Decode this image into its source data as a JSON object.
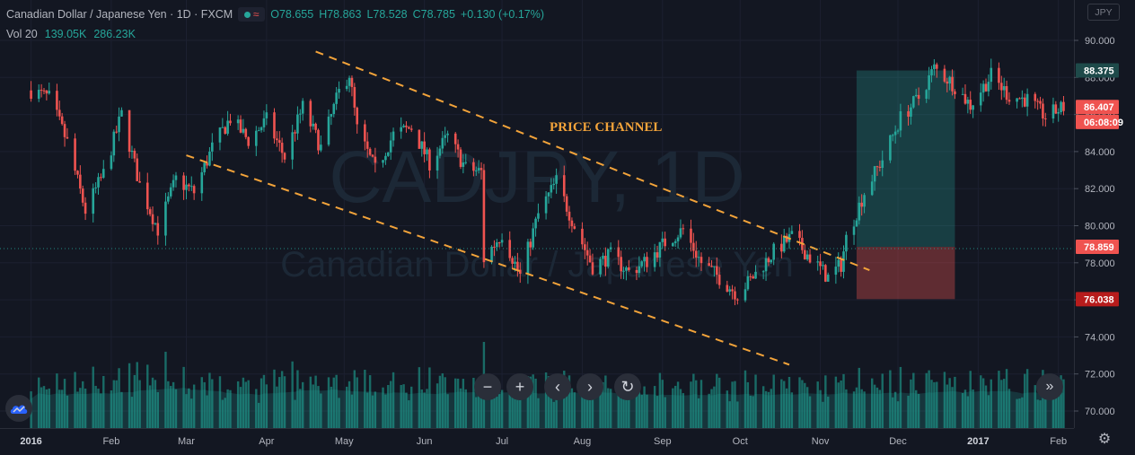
{
  "legend": {
    "title": "Canadian Dollar / Japanese Yen · 1D · FXCM",
    "open": "O78.655",
    "high": "H78.863",
    "low": "L78.528",
    "close": "C78.785",
    "change": "+0.130 (+0.17%)",
    "vol_label": "Vol 20",
    "vol_value": "139.05K",
    "vol_ma": "286.23K"
  },
  "currency_badge": "JPY",
  "watermark": {
    "symbol": "CADJPY, 1D",
    "name": "Canadian Dollar / Japanese Yen"
  },
  "annotation": "PRICE CHANNEL",
  "nav": {
    "zoom_out": "−",
    "zoom_in": "+",
    "scroll_left": "‹",
    "scroll_right": "›",
    "reset": "↻",
    "to_realtime": "»"
  },
  "colors": {
    "up": "#26a69a",
    "down": "#ef5350",
    "channel": "#f2a33a",
    "volume": "#1a8a80",
    "background": "#131722"
  },
  "chart_data": {
    "type": "candlestick",
    "symbol": "CADJPY",
    "timeframe": "1D",
    "y_range": [
      69.5,
      92.0
    ],
    "y_ticks": [
      "90.000",
      "88.000",
      "86.000",
      "84.000",
      "82.000",
      "80.000",
      "78.000",
      "76.000",
      "74.000",
      "72.000",
      "70.000"
    ],
    "x_ticks": [
      "2016",
      "Feb",
      "Mar",
      "Apr",
      "May",
      "Jun",
      "Jul",
      "Aug",
      "Sep",
      "Oct",
      "Nov",
      "Dec",
      "2017",
      "Feb"
    ],
    "price_labels": [
      {
        "label": "88.375",
        "value": 88.375,
        "kind": "target"
      },
      {
        "label": "86.407",
        "value": 86.407,
        "kind": "last"
      },
      {
        "label": "06:08:09",
        "value": 85.6,
        "kind": "countdown"
      },
      {
        "label": "78.859",
        "value": 78.859,
        "kind": "entry"
      },
      {
        "label": "76.038",
        "value": 76.038,
        "kind": "stop"
      }
    ],
    "entry_line": 78.859,
    "channel": {
      "upper": [
        [
          "2016-04-20",
          89.4
        ],
        [
          "2016-11-20",
          77.6
        ]
      ],
      "lower": [
        [
          "2016-03-01",
          83.8
        ],
        [
          "2016-10-20",
          72.5
        ]
      ]
    },
    "position": {
      "start": "2016-11-15",
      "end": "2016-12-23",
      "target": 88.375,
      "entry": 78.859,
      "stop": 76.038
    },
    "close_path": [
      [
        "2016-01-01",
        87.3
      ],
      [
        "2016-01-08",
        86.9
      ],
      [
        "2016-01-15",
        84.5
      ],
      [
        "2016-01-22",
        80.8
      ],
      [
        "2016-01-29",
        82.8
      ],
      [
        "2016-02-05",
        86.0
      ],
      [
        "2016-02-12",
        82.2
      ],
      [
        "2016-02-19",
        79.8
      ],
      [
        "2016-02-26",
        82.5
      ],
      [
        "2016-03-04",
        81.8
      ],
      [
        "2016-03-11",
        84.2
      ],
      [
        "2016-03-18",
        85.8
      ],
      [
        "2016-03-25",
        84.6
      ],
      [
        "2016-04-01",
        85.7
      ],
      [
        "2016-04-08",
        83.7
      ],
      [
        "2016-04-15",
        86.4
      ],
      [
        "2016-04-22",
        84.2
      ],
      [
        "2016-04-29",
        87.2
      ],
      [
        "2016-05-03",
        88.2
      ],
      [
        "2016-05-06",
        85.2
      ],
      [
        "2016-05-13",
        83.0
      ],
      [
        "2016-05-20",
        84.9
      ],
      [
        "2016-05-27",
        85.3
      ],
      [
        "2016-06-03",
        83.4
      ],
      [
        "2016-06-10",
        84.8
      ],
      [
        "2016-06-17",
        83.1
      ],
      [
        "2016-06-23",
        82.9
      ],
      [
        "2016-06-24",
        78.2
      ],
      [
        "2016-07-01",
        79.6
      ],
      [
        "2016-07-08",
        77.3
      ],
      [
        "2016-07-15",
        80.6
      ],
      [
        "2016-07-22",
        82.4
      ],
      [
        "2016-07-29",
        80.0
      ],
      [
        "2016-08-05",
        77.8
      ],
      [
        "2016-08-12",
        78.4
      ],
      [
        "2016-08-19",
        77.5
      ],
      [
        "2016-08-26",
        78.1
      ],
      [
        "2016-09-02",
        79.1
      ],
      [
        "2016-09-09",
        79.8
      ],
      [
        "2016-09-16",
        78.0
      ],
      [
        "2016-09-23",
        77.2
      ],
      [
        "2016-09-30",
        76.3
      ],
      [
        "2016-10-07",
        77.4
      ],
      [
        "2016-10-14",
        78.6
      ],
      [
        "2016-10-21",
        79.4
      ],
      [
        "2016-10-28",
        78.3
      ],
      [
        "2016-11-04",
        77.2
      ],
      [
        "2016-11-09",
        77.9
      ],
      [
        "2016-11-11",
        79.3
      ],
      [
        "2016-11-18",
        81.8
      ],
      [
        "2016-11-25",
        83.6
      ],
      [
        "2016-12-02",
        85.8
      ],
      [
        "2016-12-09",
        86.9
      ],
      [
        "2016-12-15",
        88.5
      ],
      [
        "2016-12-22",
        87.7
      ],
      [
        "2016-12-29",
        86.5
      ],
      [
        "2017-01-06",
        88.1
      ],
      [
        "2017-01-13",
        87.0
      ],
      [
        "2017-01-20",
        86.8
      ],
      [
        "2017-01-27",
        85.9
      ],
      [
        "2017-02-03",
        86.4
      ]
    ],
    "volume_scale_max": 140
  }
}
